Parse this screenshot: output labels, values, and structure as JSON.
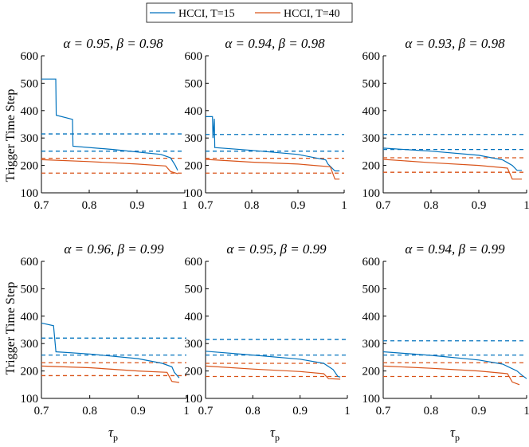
{
  "colors": {
    "t15": "#0072BD",
    "t40": "#D95319",
    "axis": "#000000"
  },
  "legend": {
    "entries": [
      "HCCI, T=15",
      "HCCI, T=40"
    ]
  },
  "shared_axes": {
    "ylabel": "Trigger Time Step",
    "xlabel": "τ",
    "xlabel_sub": "p",
    "xlim": [
      0.7,
      1.0
    ],
    "ylim": [
      100,
      600
    ],
    "xticks": [
      0.7,
      0.8,
      0.9,
      1.0
    ],
    "xtick_labels": [
      "0.7",
      "0.8",
      "0.9",
      "1"
    ],
    "yticks": [
      100,
      200,
      300,
      400,
      500,
      600
    ],
    "ytick_labels": [
      "100",
      "200",
      "300",
      "400",
      "500",
      "600"
    ]
  },
  "chart_data": [
    {
      "type": "line",
      "title": "α = 0.95, β = 0.98",
      "series": [
        {
          "name": "HCCI, T=15",
          "x": [
            0.7,
            0.73,
            0.731,
            0.765,
            0.766,
            0.85,
            0.95,
            0.97,
            0.98,
            0.985
          ],
          "y": [
            515,
            515,
            383,
            368,
            270,
            258,
            240,
            228,
            200,
            182
          ]
        },
        {
          "name": "HCCI, T=40",
          "x": [
            0.7,
            0.8,
            0.9,
            0.96,
            0.97,
            0.985
          ],
          "y": [
            221,
            214,
            205,
            198,
            178,
            170
          ]
        }
      ],
      "hlines": [
        {
          "series": "HCCI, T=15",
          "values": [
            315,
            252
          ]
        },
        {
          "series": "HCCI, T=40",
          "values": [
            226,
            172
          ]
        }
      ]
    },
    {
      "type": "line",
      "title": "α = 0.94, β = 0.98",
      "series": [
        {
          "name": "HCCI, T=15",
          "x": [
            0.7,
            0.715,
            0.716,
            0.719,
            0.72,
            0.8,
            0.9,
            0.96,
            0.965,
            0.98,
            0.99
          ],
          "y": [
            378,
            378,
            300,
            370,
            265,
            255,
            240,
            220,
            205,
            180,
            180
          ]
        },
        {
          "name": "HCCI, T=40",
          "x": [
            0.7,
            0.8,
            0.9,
            0.97,
            0.98,
            0.99
          ],
          "y": [
            222,
            212,
            205,
            195,
            150,
            150
          ]
        }
      ],
      "hlines": [
        {
          "series": "HCCI, T=15",
          "values": [
            313,
            252
          ]
        },
        {
          "series": "HCCI, T=40",
          "values": [
            226,
            172
          ]
        }
      ]
    },
    {
      "type": "line",
      "title": "α = 0.93, β = 0.98",
      "series": [
        {
          "name": "HCCI, T=15",
          "x": [
            0.7,
            0.8,
            0.9,
            0.95,
            0.97,
            0.98,
            0.99
          ],
          "y": [
            263,
            252,
            237,
            220,
            200,
            182,
            182
          ]
        },
        {
          "name": "HCCI, T=40",
          "x": [
            0.7,
            0.8,
            0.9,
            0.96,
            0.97,
            0.99
          ],
          "y": [
            222,
            210,
            200,
            190,
            150,
            150
          ]
        }
      ],
      "hlines": [
        {
          "series": "HCCI, T=15",
          "values": [
            313,
            258
          ]
        },
        {
          "series": "HCCI, T=40",
          "values": [
            228,
            175
          ]
        }
      ]
    },
    {
      "type": "line",
      "title": "α = 0.96, β = 0.99",
      "series": [
        {
          "name": "HCCI, T=15",
          "x": [
            0.7,
            0.725,
            0.73,
            0.8,
            0.9,
            0.95,
            0.97,
            0.975,
            0.985
          ],
          "y": [
            375,
            365,
            270,
            262,
            245,
            228,
            215,
            195,
            175
          ]
        },
        {
          "name": "HCCI, T=40",
          "x": [
            0.7,
            0.8,
            0.9,
            0.96,
            0.97,
            0.985
          ],
          "y": [
            218,
            212,
            200,
            195,
            162,
            158
          ]
        }
      ],
      "hlines": [
        {
          "series": "HCCI, T=15",
          "values": [
            320,
            258
          ]
        },
        {
          "series": "HCCI, T=40",
          "values": [
            230,
            183
          ]
        }
      ]
    },
    {
      "type": "line",
      "title": "α = 0.95, β = 0.99",
      "series": [
        {
          "name": "HCCI, T=15",
          "x": [
            0.7,
            0.8,
            0.9,
            0.95,
            0.97,
            0.98,
            0.985
          ],
          "y": [
            272,
            258,
            243,
            228,
            205,
            180,
            178
          ]
        },
        {
          "name": "HCCI, T=40",
          "x": [
            0.7,
            0.8,
            0.9,
            0.95,
            0.96,
            0.985
          ],
          "y": [
            218,
            207,
            198,
            190,
            172,
            170
          ]
        }
      ],
      "hlines": [
        {
          "series": "HCCI, T=15",
          "values": [
            315,
            258
          ]
        },
        {
          "series": "HCCI, T=40",
          "values": [
            228,
            180
          ]
        }
      ]
    },
    {
      "type": "line",
      "title": "α = 0.94, β = 0.99",
      "series": [
        {
          "name": "HCCI, T=15",
          "x": [
            0.7,
            0.8,
            0.9,
            0.95,
            0.98,
            0.99,
            1.0
          ],
          "y": [
            270,
            257,
            240,
            225,
            200,
            185,
            172
          ]
        },
        {
          "name": "HCCI, T=40",
          "x": [
            0.7,
            0.8,
            0.9,
            0.96,
            0.97,
            0.985
          ],
          "y": [
            218,
            210,
            200,
            190,
            160,
            150
          ]
        }
      ],
      "hlines": [
        {
          "series": "HCCI, T=15",
          "values": [
            310,
            258
          ]
        },
        {
          "series": "HCCI, T=40",
          "values": [
            230,
            180
          ]
        }
      ]
    }
  ]
}
